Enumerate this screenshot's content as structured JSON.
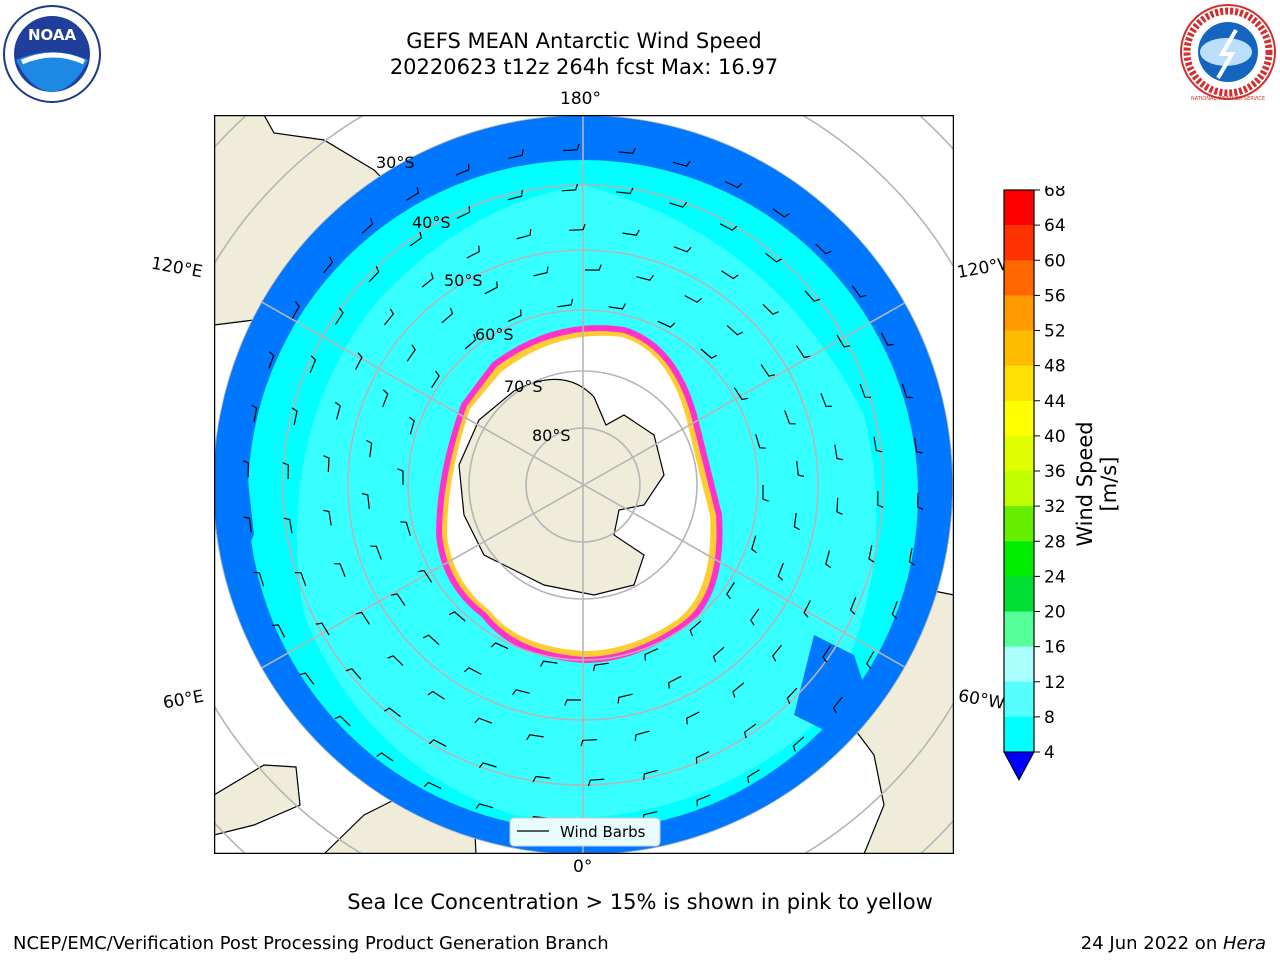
{
  "title": "GEFS MEAN Antarctic Wind Speed",
  "subtitle": "20220623 t12z 264h fcst   Max: 16.97",
  "caption": "Sea Ice Concentration > 15% is shown in pink to yellow",
  "footer_left": "NCEP/EMC/Verification Post Processing Product Generation Branch",
  "footer_date": "24 Jun 2022 on ",
  "footer_host": "Hera",
  "logos": {
    "left": "NOAA",
    "right": "NATIONAL WEATHER SERVICE"
  },
  "map": {
    "longitude_labels": {
      "top": "180°",
      "bottom": "0°",
      "upper_left": "120°E",
      "upper_right": "120°W",
      "lower_left": "60°E",
      "lower_right": "60°W"
    },
    "latitude_labels": [
      "30°S",
      "40°S",
      "50°S",
      "60°S",
      "70°S",
      "80°S"
    ],
    "legend": "Wind Barbs"
  },
  "colorbar": {
    "label": "Wind Speed [m/s]",
    "ticks": [
      "68",
      "64",
      "60",
      "56",
      "52",
      "48",
      "44",
      "40",
      "36",
      "32",
      "28",
      "24",
      "20",
      "16",
      "12",
      "8",
      "4"
    ],
    "colors": [
      "#ff0000",
      "#ff3300",
      "#ff6600",
      "#ff9900",
      "#ffbb00",
      "#ffe000",
      "#ffff00",
      "#dfff00",
      "#bfff00",
      "#66ee00",
      "#00ee00",
      "#00dd33",
      "#55ff99",
      "#aaffff",
      "#55ffff",
      "#00ffff",
      "#0077ff"
    ],
    "extend_color": "#0000ff"
  },
  "colors": {
    "land": "#efedda",
    "ocean_low": "#0077ff",
    "ocean_mid": "#00ffff",
    "ocean_high": "#66ffff",
    "ice_edge": "#ff33cc",
    "ice_inner": "#ffcc33"
  }
}
